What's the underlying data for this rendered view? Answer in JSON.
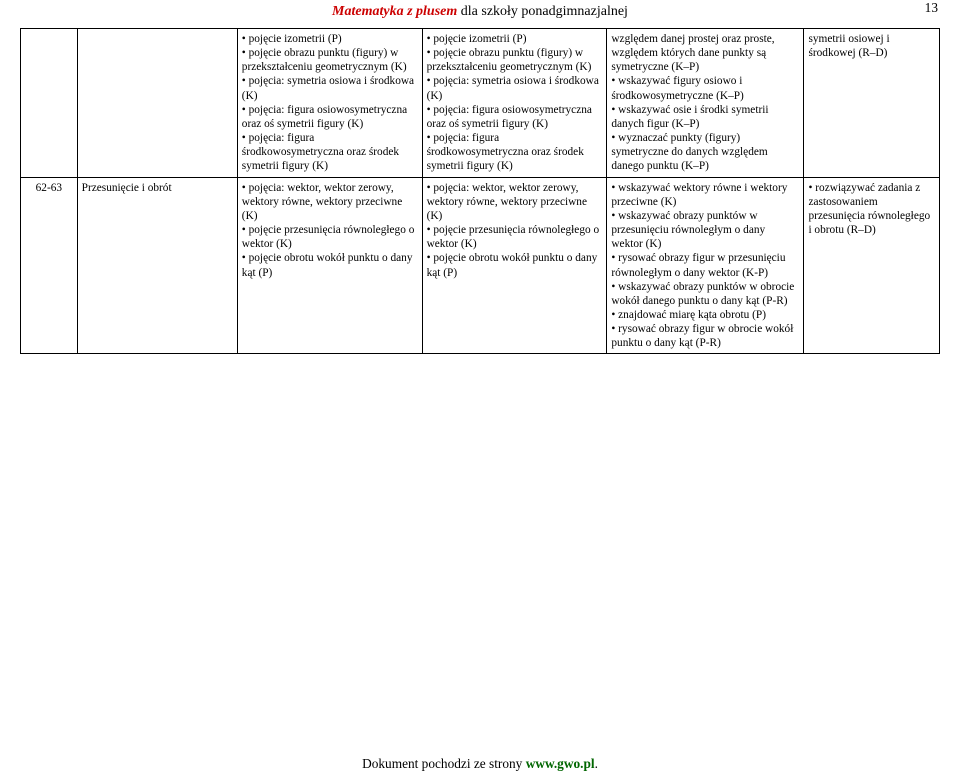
{
  "pageNumber": "13",
  "header": {
    "brand": "Matematyka z plusem",
    "tail": " dla szkoły ponadgimnazjalnej"
  },
  "row1": {
    "num": "",
    "topic": "",
    "c1": [
      "• pojęcie izometrii (P)",
      "• pojęcie obrazu punktu (figury) w przekształceniu geometrycznym (K)",
      "• pojęcia: symetria osiowa i środkowa (K)",
      "• pojęcia: figura osiowosymetryczna oraz oś symetrii figury (K)",
      "• pojęcia: figura środkowosymetryczna oraz środek symetrii figury (K)"
    ],
    "c2": [
      "• pojęcie izometrii (P)",
      "• pojęcie obrazu punktu (figury) w przekształceniu geometrycznym (K)",
      "• pojęcia: symetria osiowa i środkowa (K)",
      "• pojęcia: figura osiowosymetryczna oraz oś symetrii figury (K)",
      "• pojęcia: figura środkowosymetryczna oraz środek symetrii figury (K)"
    ],
    "c3": [
      "względem danej prostej oraz proste, względem których dane punkty są symetryczne (K–P)",
      "• wskazywać figury osiowo i środkowosymetryczne (K–P)",
      "• wskazywać osie i środki symetrii danych figur (K–P)",
      "• wyznaczać punkty (figury) symetryczne do danych względem danego punktu (K–P)"
    ],
    "c4": [
      "symetrii osiowej i środkowej (R–D)"
    ]
  },
  "row2": {
    "num": "62-63",
    "topic": "Przesunięcie i obrót",
    "c1": [
      "• pojęcia: wektor, wektor zerowy, wektory równe, wektory przeciwne (K)",
      "• pojęcie przesunięcia równoległego o wektor (K)",
      "• pojęcie obrotu wokół punktu o dany kąt (P)"
    ],
    "c2": [
      "• pojęcia: wektor, wektor zerowy, wektory równe, wektory przeciwne (K)",
      "• pojęcie przesunięcia równoległego o wektor (K)",
      "• pojęcie obrotu wokół punktu o dany kąt (P)"
    ],
    "c3": [
      "• wskazywać wektory równe i wektory przeciwne (K)",
      "• wskazywać obrazy punktów w przesunięciu równoległym o dany wektor (K)",
      "• rysować obrazy figur w przesunięciu równoległym o dany wektor (K-P)",
      "• wskazywać obrazy punktów w obrocie wokół danego punktu o dany kąt (P-R)",
      "• znajdować miarę kąta obrotu (P)",
      "• rysować obrazy figur w obrocie wokół punktu o dany kąt (P-R)"
    ],
    "c4": [
      "• rozwiązywać zadania z zastosowaniem przesunięcia równoległego i obrotu (R–D)"
    ]
  },
  "footer": {
    "lead": "Dokument pochodzi ze strony ",
    "url": "www.gwo.pl",
    "tail": "."
  }
}
